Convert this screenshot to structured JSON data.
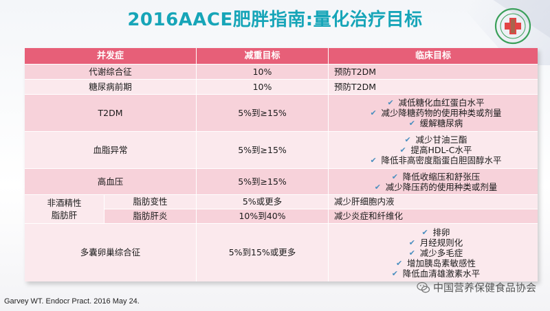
{
  "title": "2016AACE肥胖指南:量化治疗目标",
  "table": {
    "headers": [
      "并发症",
      "减重目标",
      "临床目标"
    ],
    "rows": [
      {
        "condition": "代谢综合征",
        "goal": "10%",
        "clinical": "预防T2DM"
      },
      {
        "condition": "糖尿病前期",
        "goal": "10%",
        "clinical": "预防T2DM"
      },
      {
        "condition": "T2DM",
        "goal": "5%到≥15%",
        "clinical_list": [
          "减低糖化血红蛋白水平",
          "减少降糖药物的使用种类或剂量",
          "缓解糖尿病"
        ]
      },
      {
        "condition": "血脂异常",
        "goal": "5%到≥15%",
        "clinical_list": [
          "减少甘油三酯",
          "提高HDL-C水平",
          "降低非高密度脂蛋白胆固醇水平"
        ]
      },
      {
        "condition": "高血压",
        "goal": "5%到≥15%",
        "clinical_list": [
          "降低收缩压和舒张压",
          "减少降压药的使用种类或剂量"
        ]
      }
    ],
    "nafld": {
      "label": "非酒精性\n脂肪肝",
      "subrows": [
        {
          "condition": "脂肪变性",
          "goal": "5%或更多",
          "clinical": "减少肝细胞内液"
        },
        {
          "condition": "脂肪肝炎",
          "goal": "10%到40%",
          "clinical": "减少炎症和纤维化"
        }
      ]
    },
    "pcos": {
      "condition": "多囊卵巢综合征",
      "goal": "5%到15%或更多",
      "clinical_list": [
        "排卵",
        "月经规则化",
        "减少多毛症",
        "增加胰岛素敏感性",
        "降低血清雄激素水平"
      ]
    }
  },
  "citation": "Garvey WT. Endocr Pract. 2016 May 24.",
  "watermark": "中国营养保健食品协会",
  "icons": {
    "check": "check-icon",
    "logo": "society-logo",
    "wechat": "wechat-icon"
  }
}
